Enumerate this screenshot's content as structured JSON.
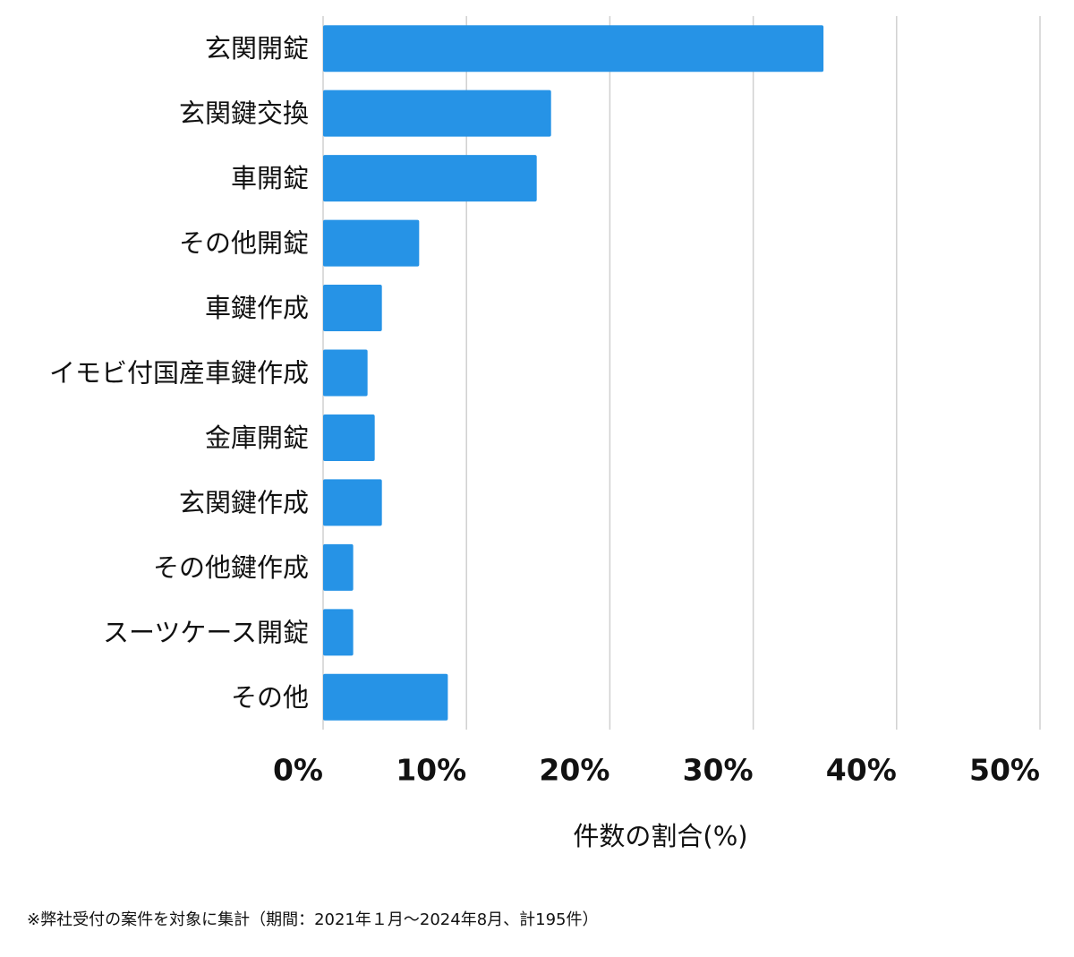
{
  "chart_data": {
    "type": "bar",
    "orientation": "horizontal",
    "categories": [
      "玄関開錠",
      "玄関鍵交換",
      "車開錠",
      "その他開錠",
      "車鍵作成",
      "イモビ付国産車鍵作成",
      "金庫開錠",
      "玄関鍵作成",
      "その他鍵作成",
      "スーツケース開錠",
      "その他"
    ],
    "values": [
      34.9,
      15.9,
      14.9,
      6.7,
      4.1,
      3.1,
      3.6,
      4.1,
      2.1,
      2.1,
      8.7
    ],
    "color": "#2693e6",
    "xlim": [
      0,
      50
    ],
    "xticks": [
      {
        "value": 0,
        "label": "0%"
      },
      {
        "value": 10,
        "label": "10%"
      },
      {
        "value": 20,
        "label": "20%"
      },
      {
        "value": 30,
        "label": "30%"
      },
      {
        "value": 40,
        "label": "40%"
      },
      {
        "value": 50,
        "label": "50%"
      }
    ],
    "x_label": "件数の割合(%)",
    "grid": true,
    "footnote": "※弊社受付の案件を対象に集計（期間：2021年１月〜2024年8月、計195件）"
  }
}
